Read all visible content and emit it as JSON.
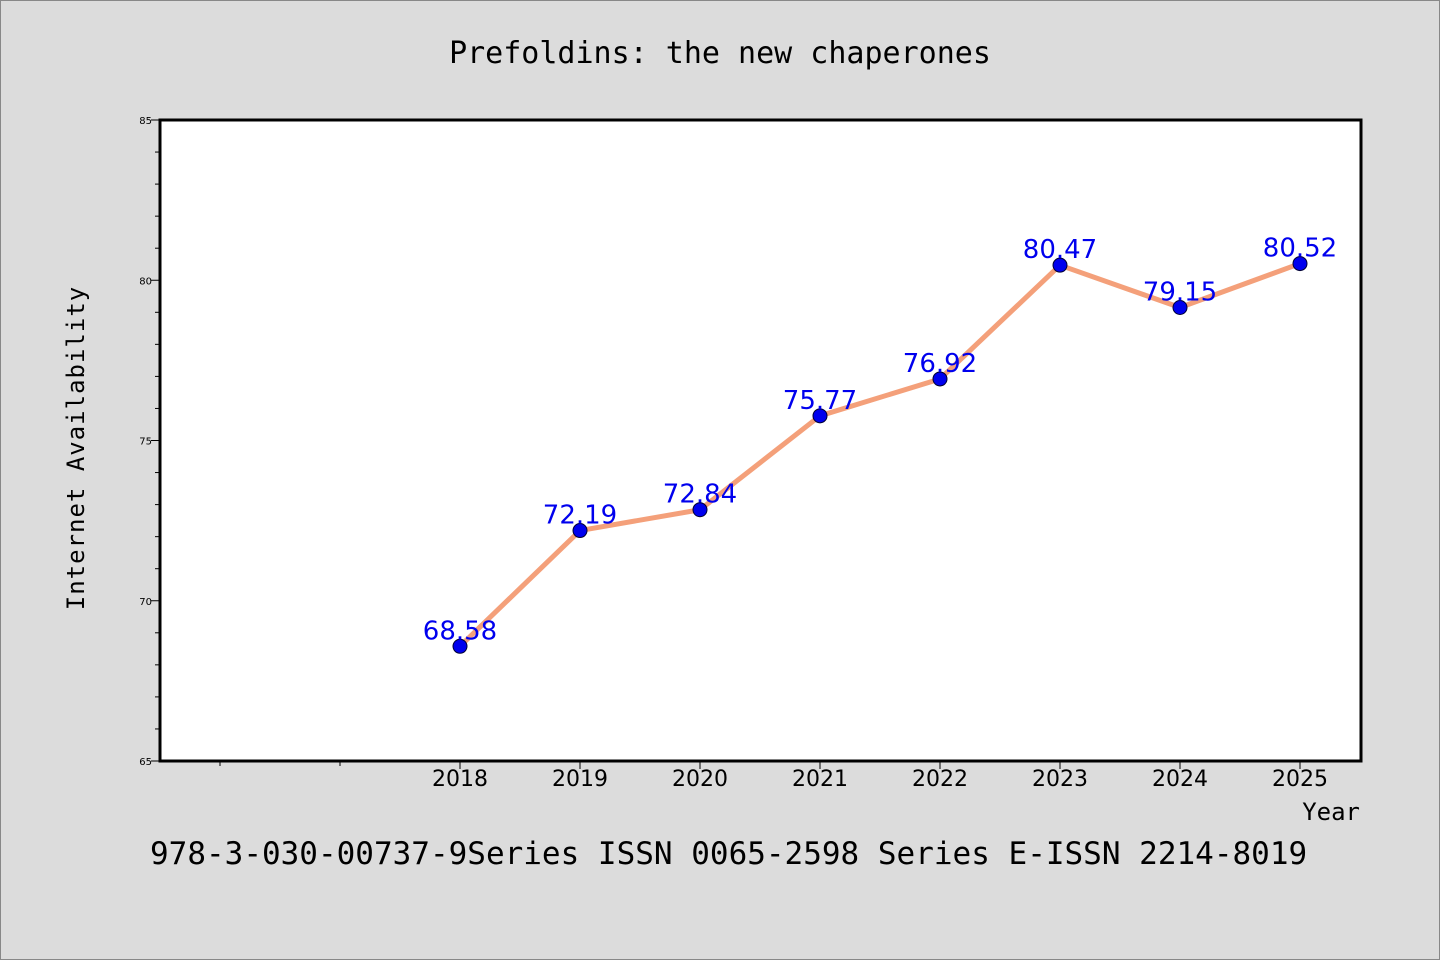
{
  "chart_data": {
    "type": "line",
    "title": "Prefoldins: the new chaperones",
    "xlabel": "Year",
    "ylabel": "Internet Availability",
    "categories": [
      "2018",
      "2019",
      "2020",
      "2021",
      "2022",
      "2023",
      "2024",
      "2025"
    ],
    "values": [
      68.58,
      72.19,
      72.84,
      75.77,
      76.92,
      80.47,
      79.15,
      80.52
    ],
    "data_labels": [
      "68.58",
      "72.19",
      "72.84",
      "75.77",
      "76.92",
      "80.47",
      "79.15",
      "80.52"
    ],
    "ylim": [
      65,
      85
    ],
    "yticks": [
      "65",
      "70",
      "75",
      "80",
      "85"
    ],
    "grid": false,
    "line_color": "#f4a07a",
    "marker_color": "#0000ee",
    "label_color": "#0000ee",
    "footer": "978-3-030-00737-9Series ISSN 0065-2598 Series E-ISSN 2214-8019"
  }
}
